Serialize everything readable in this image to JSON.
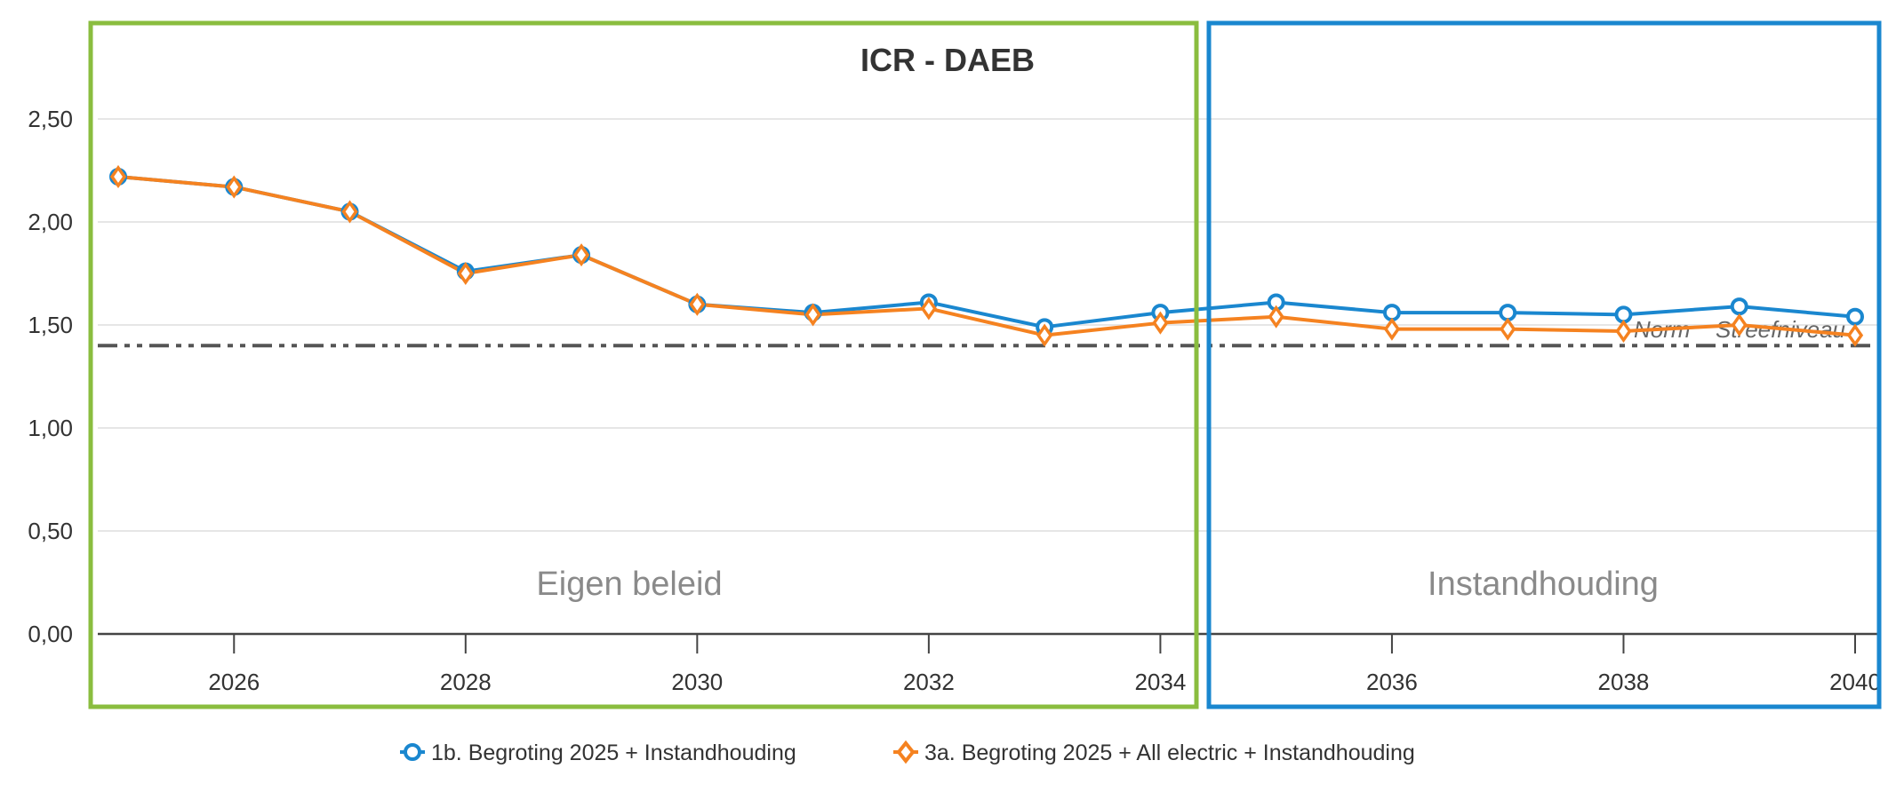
{
  "chart_data": {
    "type": "line",
    "title": "ICR - DAEB",
    "x": [
      2025,
      2026,
      2027,
      2028,
      2029,
      2030,
      2031,
      2032,
      2033,
      2034,
      2035,
      2036,
      2037,
      2038,
      2039,
      2040
    ],
    "x_ticks": [
      "2026",
      "2028",
      "2030",
      "2032",
      "2034",
      "2036",
      "2038",
      "2040"
    ],
    "y_ticks": [
      "0,00",
      "0,50",
      "1,00",
      "1,50",
      "2,00",
      "2,50"
    ],
    "ylim": [
      0,
      2.9
    ],
    "xlim": [
      2025,
      2040
    ],
    "grid": "horizontal",
    "legend_position": "bottom",
    "series": [
      {
        "name": "1b. Begroting 2025 + Instandhouding",
        "color": "#1a87cf",
        "marker": "circle",
        "values": [
          2.22,
          2.17,
          2.05,
          1.76,
          1.84,
          1.6,
          1.56,
          1.61,
          1.49,
          1.56,
          1.61,
          1.56,
          1.56,
          1.55,
          1.59,
          1.54
        ]
      },
      {
        "name": "3a. Begroting 2025 + All electric + Instandhouding",
        "color": "#f58220",
        "marker": "diamond",
        "values": [
          2.22,
          2.17,
          2.05,
          1.75,
          1.84,
          1.6,
          1.55,
          1.58,
          1.45,
          1.51,
          1.54,
          1.48,
          1.48,
          1.47,
          1.5,
          1.45
        ]
      }
    ],
    "reference_line": {
      "value": 1.4,
      "labels": [
        "Norm",
        "Streefniveau"
      ],
      "color": "#555555"
    },
    "regions": [
      {
        "label": "Eigen beleid",
        "color": "#8abd3f",
        "from": 2025,
        "to": 2034
      },
      {
        "label": "Instandhouding",
        "color": "#1a87cf",
        "from": 2035,
        "to": 2040
      }
    ]
  }
}
